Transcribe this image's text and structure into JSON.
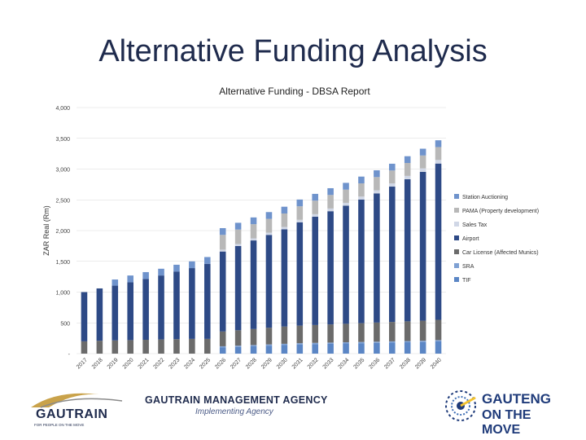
{
  "slide": {
    "title": "Alternative Funding Analysis"
  },
  "chart_data": {
    "type": "bar",
    "stacked": true,
    "title": "Alternative Funding - DBSA Report",
    "xlabel": "",
    "ylabel": "ZAR Real (Rm)",
    "ylim": [
      0,
      4000
    ],
    "yticks": [
      0,
      500,
      1000,
      1500,
      2000,
      2500,
      3000,
      3500,
      4000
    ],
    "ytick_labels": [
      "-",
      "500",
      "1,000",
      "1,500",
      "2,000",
      "2,500",
      "3,000",
      "3,500",
      "4,000"
    ],
    "grid": true,
    "legend_position": "right",
    "categories": [
      "2017",
      "2018",
      "2019",
      "2020",
      "2021",
      "2022",
      "2023",
      "2024",
      "2025",
      "2026",
      "2027",
      "2028",
      "2029",
      "2030",
      "2031",
      "2032",
      "2033",
      "2034",
      "2035",
      "2036",
      "2037",
      "2038",
      "2039",
      "2040"
    ],
    "series": [
      {
        "name": "TIF",
        "color": "#5b86c5",
        "values": [
          0,
          0,
          0,
          0,
          0,
          0,
          0,
          0,
          0,
          100,
          110,
          120,
          130,
          140,
          150,
          155,
          160,
          165,
          170,
          175,
          180,
          185,
          190,
          200
        ]
      },
      {
        "name": "SRA",
        "color": "#7fa1d3",
        "values": [
          0,
          0,
          0,
          0,
          0,
          0,
          0,
          0,
          0,
          20,
          20,
          20,
          20,
          20,
          20,
          20,
          20,
          20,
          20,
          20,
          20,
          20,
          20,
          20
        ]
      },
      {
        "name": "Car License (Affected Munics)",
        "color": "#6b6b6b",
        "values": [
          200,
          210,
          215,
          220,
          225,
          230,
          235,
          240,
          240,
          240,
          250,
          260,
          270,
          280,
          285,
          290,
          295,
          300,
          305,
          310,
          315,
          320,
          325,
          330
        ]
      },
      {
        "name": "Airport",
        "color": "#2e4a86",
        "values": [
          800,
          850,
          890,
          940,
          990,
          1040,
          1100,
          1150,
          1220,
          1300,
          1370,
          1440,
          1510,
          1580,
          1680,
          1760,
          1840,
          1920,
          2010,
          2100,
          2200,
          2310,
          2420,
          2540
        ]
      },
      {
        "name": "Sales Tax",
        "color": "#d0d7e6",
        "values": [
          0,
          0,
          0,
          0,
          0,
          0,
          0,
          0,
          0,
          30,
          32,
          34,
          36,
          38,
          40,
          42,
          44,
          46,
          48,
          50,
          52,
          54,
          56,
          58
        ]
      },
      {
        "name": "PAMA (Property development)",
        "color": "#b8b8b8",
        "values": [
          0,
          0,
          0,
          0,
          0,
          0,
          0,
          0,
          0,
          240,
          235,
          230,
          225,
          220,
          220,
          220,
          220,
          215,
          215,
          215,
          210,
          210,
          210,
          210
        ]
      },
      {
        "name": "Station Auctioning",
        "color": "#6f93cc",
        "values": [
          0,
          0,
          100,
          110,
          110,
          110,
          110,
          110,
          110,
          110,
          110,
          110,
          110,
          110,
          110,
          110,
          110,
          110,
          110,
          110,
          110,
          110,
          110,
          110
        ]
      }
    ]
  },
  "footer": {
    "gautrain": {
      "name": "GAUTRAIN",
      "tagline": "FOR PEOPLE ON THE MOVE"
    },
    "agency": {
      "name": "GAUTRAIN MANAGEMENT AGENCY",
      "tagline": "Implementing Agency"
    },
    "gauteng": {
      "line1": "GAUTENG",
      "line2": "ON THE MOVE"
    }
  }
}
